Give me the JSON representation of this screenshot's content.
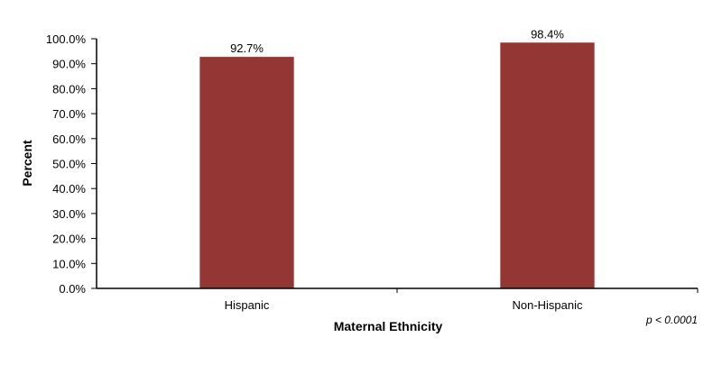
{
  "chart_data": {
    "type": "bar",
    "categories": [
      "Hispanic",
      "Non-Hispanic"
    ],
    "values": [
      92.7,
      98.4
    ],
    "data_labels": [
      "92.7%",
      "98.4%"
    ],
    "title": "",
    "xlabel": "Maternal Ethnicity",
    "ylabel": "Percent",
    "ylim": [
      0,
      100
    ],
    "yticks": [
      "0.0%",
      "10.0%",
      "20.0%",
      "30.0%",
      "40.0%",
      "50.0%",
      "60.0%",
      "70.0%",
      "80.0%",
      "90.0%",
      "100.0%"
    ],
    "grid": false,
    "legend": "none",
    "bar_color": "#943634",
    "annotation": "p < 0.0001"
  }
}
